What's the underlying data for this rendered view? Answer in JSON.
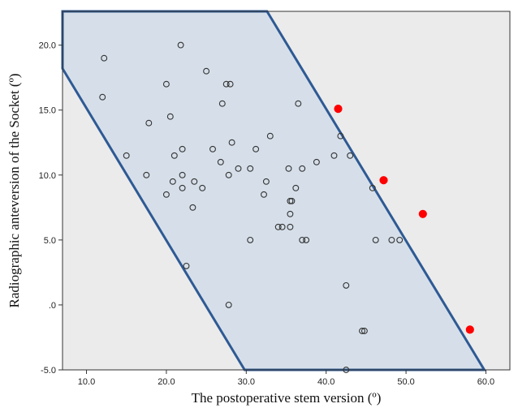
{
  "chart_data": {
    "type": "scatter",
    "xlabel": "The postoperative stem version (º)",
    "ylabel": "Radiographic anteversion of the Socket (º)",
    "xlim": [
      7.0,
      63.0
    ],
    "ylim": [
      -5.0,
      22.6
    ],
    "x_ticks": [
      10.0,
      20.0,
      30.0,
      40.0,
      50.0,
      60.0
    ],
    "x_tick_labels": [
      "10.0",
      "20.0",
      "30.0",
      "40.0",
      "50.0",
      "60.0"
    ],
    "y_ticks": [
      -5.0,
      0.0,
      5.0,
      10.0,
      15.0,
      20.0
    ],
    "y_tick_labels": [
      "-5.0",
      ".0",
      "5.0",
      "10.0",
      "15.0",
      "20.0"
    ],
    "grid": false,
    "colors": {
      "plot_background": "#ebebeb",
      "safe_zone_fill": "#d6dfe9",
      "safe_zone_stroke": "#2e5a94",
      "inlier_stroke": "#333333",
      "outlier_fill": "#ff0000"
    },
    "safe_zone_polygon": [
      [
        7.0,
        22.6
      ],
      [
        13.5,
        22.6
      ],
      [
        32.6,
        22.6
      ],
      [
        59.8,
        -5.0
      ],
      [
        29.8,
        -5.0
      ],
      [
        7.0,
        18.2
      ]
    ],
    "series": [
      {
        "marker": "open-circle",
        "points": [
          [
            12.2,
            19.0
          ],
          [
            12.0,
            16.0
          ],
          [
            21.8,
            20.0
          ],
          [
            20.0,
            17.0
          ],
          [
            25.0,
            18.0
          ],
          [
            27.5,
            17.0
          ],
          [
            28.0,
            17.0
          ],
          [
            17.8,
            14.0
          ],
          [
            20.5,
            14.5
          ],
          [
            27.0,
            15.5
          ],
          [
            36.5,
            15.5
          ],
          [
            15.0,
            11.5
          ],
          [
            21.0,
            11.5
          ],
          [
            22.0,
            12.0
          ],
          [
            25.8,
            12.0
          ],
          [
            28.2,
            12.5
          ],
          [
            31.2,
            12.0
          ],
          [
            33.0,
            13.0
          ],
          [
            41.8,
            13.0
          ],
          [
            17.5,
            10.0
          ],
          [
            20.8,
            9.5
          ],
          [
            22.0,
            10.0
          ],
          [
            22.0,
            9.0
          ],
          [
            23.5,
            9.5
          ],
          [
            24.5,
            9.0
          ],
          [
            26.8,
            11.0
          ],
          [
            27.8,
            10.0
          ],
          [
            29.0,
            10.5
          ],
          [
            30.5,
            10.5
          ],
          [
            32.2,
            8.5
          ],
          [
            32.5,
            9.5
          ],
          [
            35.3,
            10.5
          ],
          [
            36.2,
            9.0
          ],
          [
            37.0,
            10.5
          ],
          [
            38.8,
            11.0
          ],
          [
            41.0,
            11.5
          ],
          [
            43.0,
            11.5
          ],
          [
            20.0,
            8.5
          ],
          [
            23.3,
            7.5
          ],
          [
            35.5,
            8.0
          ],
          [
            35.7,
            8.0
          ],
          [
            35.5,
            7.0
          ],
          [
            35.5,
            6.0
          ],
          [
            34.0,
            6.0
          ],
          [
            34.5,
            6.0
          ],
          [
            30.5,
            5.0
          ],
          [
            37.0,
            5.0
          ],
          [
            37.5,
            5.0
          ],
          [
            45.8,
            9.0
          ],
          [
            46.2,
            5.0
          ],
          [
            48.2,
            5.0
          ],
          [
            49.2,
            5.0
          ],
          [
            22.5,
            3.0
          ],
          [
            27.8,
            0.0
          ],
          [
            42.5,
            1.5
          ],
          [
            44.5,
            -2.0
          ],
          [
            44.8,
            -2.0
          ],
          [
            42.5,
            -5.0
          ]
        ]
      },
      {
        "marker": "filled-red",
        "points": [
          [
            41.5,
            15.1
          ],
          [
            47.2,
            9.6
          ],
          [
            52.1,
            7.0
          ],
          [
            58.0,
            -1.9
          ]
        ]
      }
    ]
  }
}
